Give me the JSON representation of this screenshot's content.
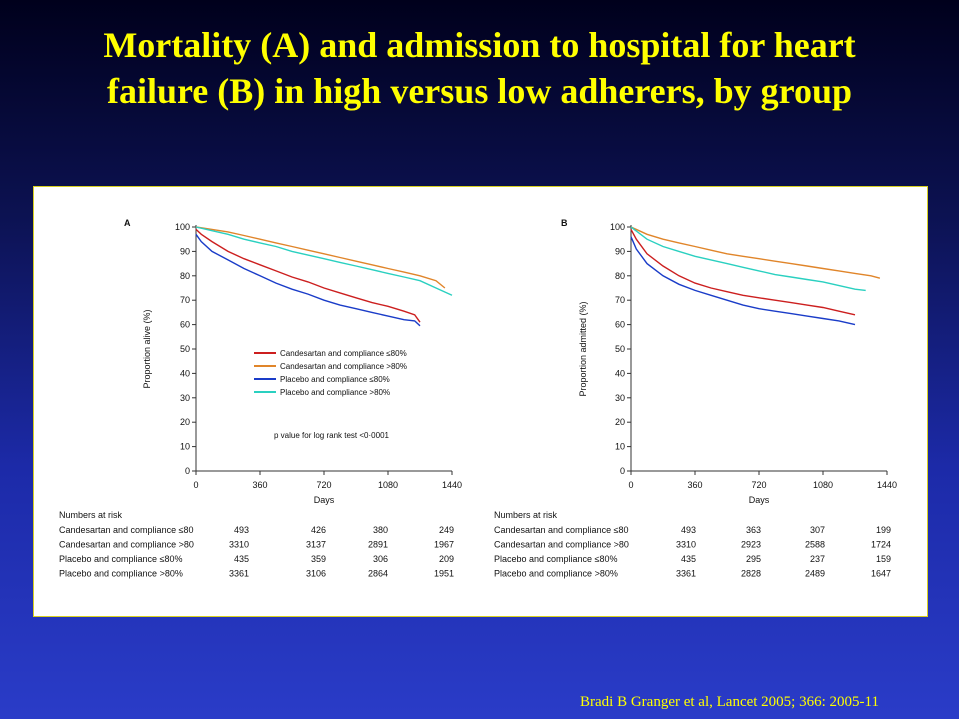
{
  "slide": {
    "title_line1": "Mortality (A) and admission to hospital for heart",
    "title_line2": "failure (B) in high versus low adherers, by group",
    "citation": "Bradi B Granger et al, Lancet 2005; 366: 2005-11"
  },
  "chart_data": [
    {
      "panel": "A",
      "type": "line",
      "ylabel": "Proportion alive (%)",
      "xlabel": "Days",
      "xlim": [
        0,
        1440
      ],
      "ylim": [
        0,
        100
      ],
      "x_ticks": [
        0,
        360,
        720,
        1080,
        1440
      ],
      "y_ticks": [
        0,
        10,
        20,
        30,
        40,
        50,
        60,
        70,
        80,
        90,
        100
      ],
      "grid": false,
      "legend_position": "center",
      "annotation": "p value for log rank test   <0·0001",
      "series": [
        {
          "name": "Candesartan and compliance ≤80%",
          "color": "#cc1f1f",
          "x": [
            0,
            30,
            90,
            180,
            270,
            360,
            450,
            540,
            630,
            720,
            810,
            900,
            990,
            1080,
            1170,
            1230,
            1260
          ],
          "y": [
            99,
            97,
            94,
            90,
            87,
            84.5,
            82,
            79.5,
            77.5,
            75,
            73,
            71,
            69,
            67.5,
            65.5,
            64,
            61
          ]
        },
        {
          "name": "Candesartan and compliance >80%",
          "color": "#e0852a",
          "x": [
            0,
            90,
            180,
            270,
            360,
            450,
            540,
            630,
            720,
            810,
            900,
            990,
            1080,
            1170,
            1260,
            1350,
            1400
          ],
          "y": [
            100,
            99,
            98,
            96.5,
            95,
            93.5,
            92,
            90.5,
            89,
            87.5,
            86,
            84.5,
            83,
            81.5,
            80,
            78,
            75
          ]
        },
        {
          "name": "Placebo and compliance ≤80%",
          "color": "#1a3cc8",
          "x": [
            0,
            30,
            90,
            180,
            270,
            360,
            450,
            540,
            630,
            720,
            810,
            900,
            990,
            1080,
            1170,
            1230,
            1260
          ],
          "y": [
            97,
            94,
            90,
            86.5,
            83,
            80,
            77,
            74.5,
            72.5,
            70,
            68,
            66.5,
            65,
            63.5,
            62,
            61.5,
            59.5
          ]
        },
        {
          "name": "Placebo and compliance >80%",
          "color": "#2ad0c0",
          "x": [
            0,
            90,
            180,
            270,
            360,
            450,
            540,
            630,
            720,
            810,
            900,
            990,
            1080,
            1170,
            1260,
            1350,
            1440
          ],
          "y": [
            100,
            98.5,
            97,
            95,
            93.5,
            92,
            90,
            88.5,
            87,
            85.5,
            84,
            82.5,
            81,
            79.5,
            78,
            75,
            72
          ]
        }
      ],
      "risk_table": {
        "header": "Numbers at risk",
        "rows": [
          {
            "label": "Candesartan and compliance ≤80",
            "values": [
              "493",
              "426",
              "380",
              "249"
            ]
          },
          {
            "label": "Candesartan and compliance >80",
            "values": [
              "3310",
              "3137",
              "2891",
              "1967"
            ]
          },
          {
            "label": "Placebo and compliance ≤80%",
            "values": [
              "435",
              "359",
              "306",
              "209"
            ]
          },
          {
            "label": "Placebo and compliance >80%",
            "values": [
              "3361",
              "3106",
              "2864",
              "1951"
            ]
          }
        ]
      }
    },
    {
      "panel": "B",
      "type": "line",
      "ylabel": "Proportion admitted (%)",
      "xlabel": "Days",
      "xlim": [
        0,
        1440
      ],
      "ylim": [
        0,
        100
      ],
      "x_ticks": [
        0,
        360,
        720,
        1080,
        1440
      ],
      "y_ticks": [
        0,
        10,
        20,
        30,
        40,
        50,
        60,
        70,
        80,
        90,
        100
      ],
      "grid": false,
      "series": [
        {
          "name": "Candesartan and compliance ≤80%",
          "color": "#cc1f1f",
          "x": [
            0,
            30,
            90,
            180,
            270,
            360,
            450,
            540,
            630,
            720,
            810,
            900,
            990,
            1080,
            1170,
            1260
          ],
          "y": [
            99,
            95,
            89,
            84,
            80,
            77,
            75,
            73.5,
            72,
            71,
            70,
            69,
            68,
            67,
            65.5,
            64
          ]
        },
        {
          "name": "Candesartan and compliance >80%",
          "color": "#e0852a",
          "x": [
            0,
            90,
            180,
            270,
            360,
            450,
            540,
            630,
            720,
            810,
            900,
            990,
            1080,
            1170,
            1260,
            1350,
            1400
          ],
          "y": [
            100,
            97,
            95,
            93.5,
            92,
            90.5,
            89,
            88,
            87,
            86,
            85,
            84,
            83,
            82,
            81,
            80,
            79
          ]
        },
        {
          "name": "Placebo and compliance ≤80%",
          "color": "#1a3cc8",
          "x": [
            0,
            30,
            90,
            180,
            270,
            360,
            450,
            540,
            630,
            720,
            810,
            900,
            990,
            1080,
            1170,
            1260
          ],
          "y": [
            96,
            91,
            85,
            80,
            76.5,
            74,
            72,
            70,
            68,
            66.5,
            65.5,
            64.5,
            63.5,
            62.5,
            61.5,
            60
          ]
        },
        {
          "name": "Placebo and compliance >80%",
          "color": "#2ad0c0",
          "x": [
            0,
            90,
            180,
            270,
            360,
            450,
            540,
            630,
            720,
            810,
            900,
            990,
            1080,
            1170,
            1260,
            1320
          ],
          "y": [
            100,
            95,
            92,
            90,
            88,
            86.5,
            85,
            83.5,
            82,
            80.5,
            79.5,
            78.5,
            77.5,
            76,
            74.5,
            74
          ]
        }
      ],
      "risk_table": {
        "header": "Numbers at risk",
        "rows": [
          {
            "label": "Candesartan and compliance ≤80",
            "values": [
              "493",
              "363",
              "307",
              "199"
            ]
          },
          {
            "label": "Candesartan and compliance >80",
            "values": [
              "3310",
              "2923",
              "2588",
              "1724"
            ]
          },
          {
            "label": "Placebo and compliance ≤80%",
            "values": [
              "435",
              "295",
              "237",
              "159"
            ]
          },
          {
            "label": "Placebo and compliance >80%",
            "values": [
              "3361",
              "2828",
              "2489",
              "1647"
            ]
          }
        ]
      }
    }
  ]
}
